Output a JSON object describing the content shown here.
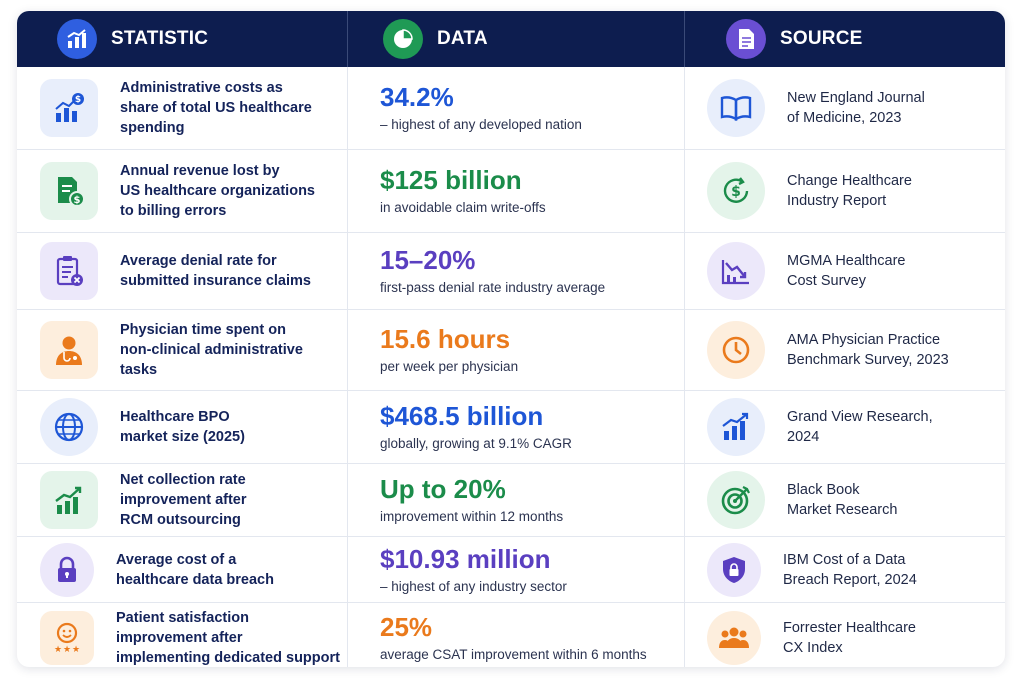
{
  "header": {
    "statistic": "STATISTIC",
    "data": "DATA",
    "source": "SOURCE"
  },
  "colors": {
    "header_bg": "#0d1d4f",
    "blue": "#1e56d6",
    "green": "#1b8c4a",
    "purple": "#5a3fc0",
    "orange": "#ea7a1c"
  },
  "rows": [
    {
      "stat": [
        "Administrative costs as",
        "share of total US healthcare",
        "spending"
      ],
      "value": "34.2%",
      "sub": "– highest of any developed nation",
      "source": [
        "New England Journal",
        "of Medicine, 2023"
      ],
      "stat_icon": "dollar-chart-icon",
      "source_icon": "book-icon",
      "accent": "blue"
    },
    {
      "stat": [
        "Annual revenue lost by",
        "US healthcare organizations",
        "to billing errors"
      ],
      "value": "$125 billion",
      "sub": "in avoidable claim write-offs",
      "source": [
        "Change Healthcare",
        "Industry Report"
      ],
      "stat_icon": "invoice-dollar-icon",
      "source_icon": "dollar-refresh-icon",
      "accent": "green"
    },
    {
      "stat": [
        "Average denial rate for",
        "submitted insurance claims"
      ],
      "value": "15–20%",
      "sub": "first-pass denial rate industry average",
      "source": [
        "MGMA Healthcare",
        "Cost Survey"
      ],
      "stat_icon": "clipboard-denied-icon",
      "source_icon": "chart-down-icon",
      "accent": "purple"
    },
    {
      "stat": [
        "Physician time spent on",
        "non-clinical administrative",
        "tasks"
      ],
      "value": "15.6 hours",
      "sub": "per week per physician",
      "source": [
        "AMA Physician Practice",
        "Benchmark Survey, 2023"
      ],
      "stat_icon": "physician-icon",
      "source_icon": "clock-icon",
      "accent": "orange"
    },
    {
      "stat": [
        "Healthcare BPO",
        "market size (2025)"
      ],
      "value": "$468.5 billion",
      "sub": "globally, growing at 9.1% CAGR",
      "source": [
        "Grand View Research,",
        "2024"
      ],
      "stat_icon": "globe-icon",
      "source_icon": "chart-up-icon",
      "accent": "blue"
    },
    {
      "stat": [
        "Net collection rate",
        "improvement after",
        "RCM outsourcing"
      ],
      "value": "Up to 20%",
      "sub": "improvement within 12 months",
      "source": [
        "Black Book",
        "Market Research"
      ],
      "stat_icon": "growth-chart-icon",
      "source_icon": "target-icon",
      "accent": "green"
    },
    {
      "stat": [
        "Average cost of a",
        "healthcare data breach"
      ],
      "value": "$10.93 million",
      "sub": "– highest of any industry sector",
      "source": [
        "IBM Cost of a Data",
        "Breach Report, 2024"
      ],
      "stat_icon": "lock-icon",
      "source_icon": "shield-lock-icon",
      "accent": "purple"
    },
    {
      "stat": [
        "Patient satisfaction",
        "improvement after",
        "implementing dedicated support"
      ],
      "value": "25%",
      "sub": "average CSAT improvement within 6 months",
      "source": [
        "Forrester Healthcare",
        "CX Index"
      ],
      "stat_icon": "smiley-stars-icon",
      "source_icon": "people-group-icon",
      "accent": "orange"
    }
  ]
}
